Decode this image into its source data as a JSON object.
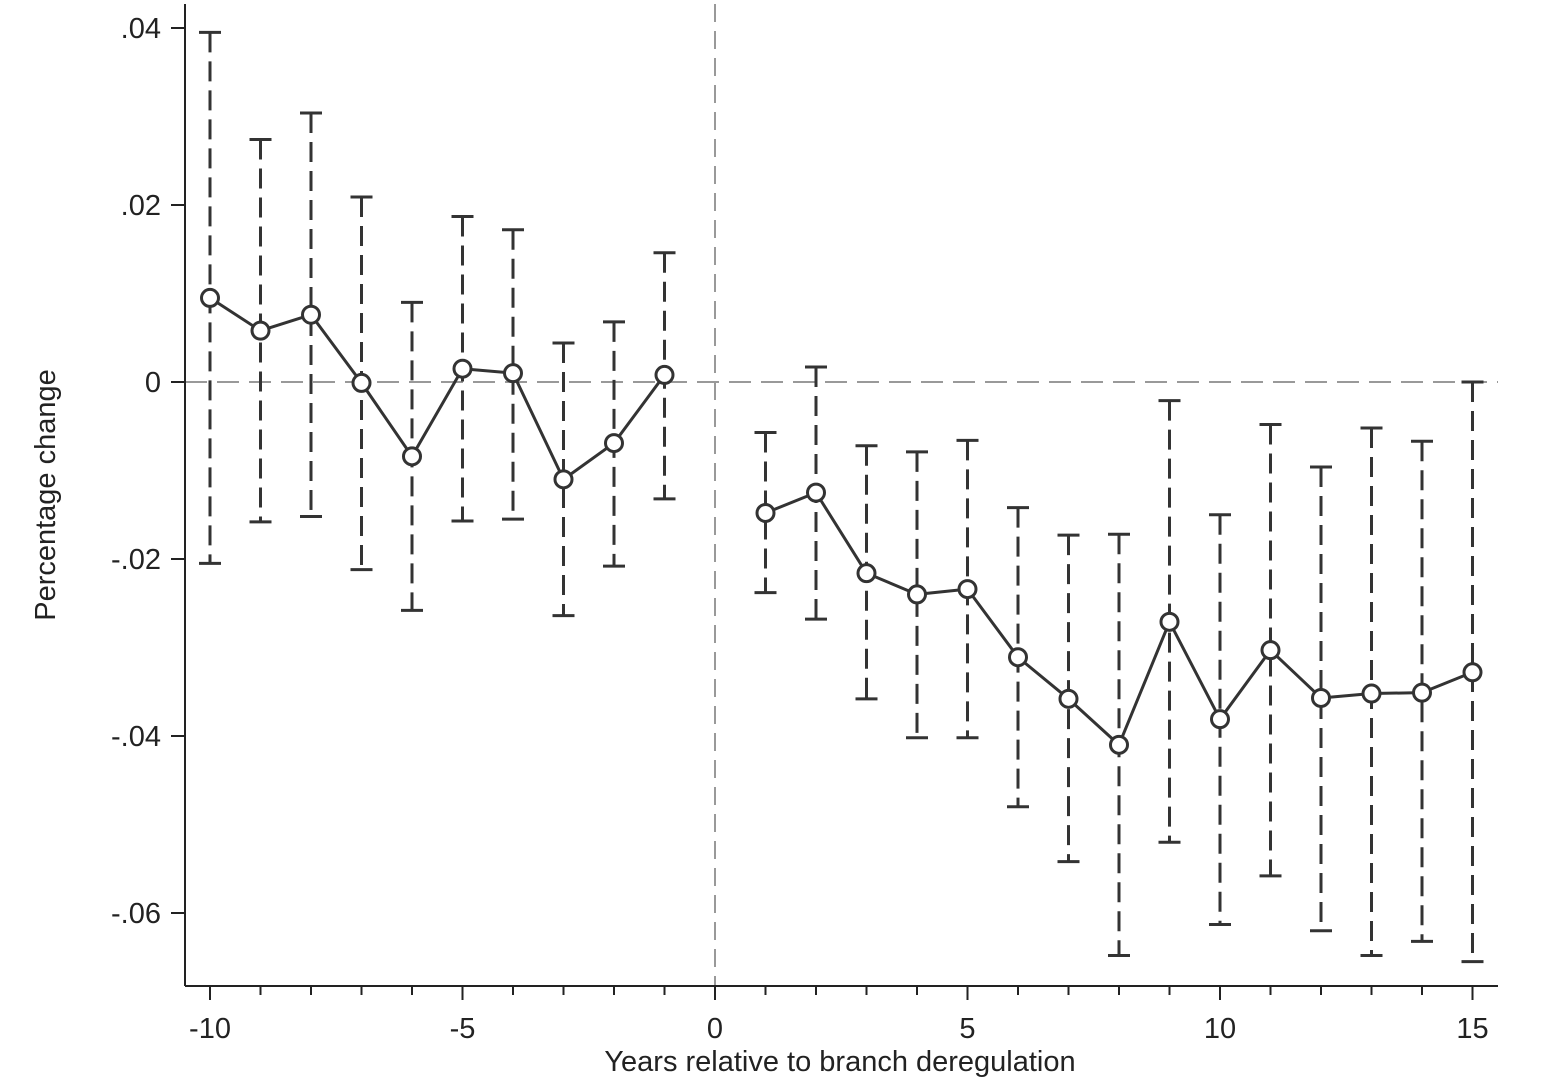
{
  "chart_data": {
    "type": "line",
    "xlabel": "Years relative to branch deregulation",
    "ylabel": "Percentage change",
    "xlim": [
      -10.5,
      15.5
    ],
    "ylim": [
      -0.068,
      0.043
    ],
    "x_ticks": [
      -10,
      -5,
      0,
      5,
      10,
      15
    ],
    "x_tick_labels": [
      "-10",
      "-5",
      "0",
      "5",
      "10",
      "15"
    ],
    "x_minor_ticks": [
      -9,
      -8,
      -7,
      -6,
      -4,
      -3,
      -2,
      -1,
      1,
      2,
      3,
      4,
      6,
      7,
      8,
      9,
      11,
      12,
      13,
      14
    ],
    "y_ticks": [
      0.04,
      0.02,
      0,
      -0.02,
      -0.04,
      -0.06
    ],
    "y_tick_labels": [
      ".04",
      ".02",
      "0",
      "-.02",
      "-.04",
      "-.06"
    ],
    "reference_lines": {
      "x": 0,
      "y": 0
    },
    "grid": false,
    "series": [
      {
        "x": [
          -10,
          -9,
          -8,
          -7,
          -6,
          -5,
          -4,
          -3,
          -2,
          -1
        ],
        "y": [
          0.0095,
          0.0058,
          0.0076,
          -0.0001,
          -0.0084,
          0.0015,
          0.001,
          -0.011,
          -0.0069,
          0.0008
        ],
        "lower": [
          -0.0205,
          -0.0158,
          -0.0152,
          -0.0212,
          -0.0258,
          -0.0157,
          -0.0155,
          -0.0264,
          -0.0208,
          -0.0132
        ],
        "upper": [
          0.0395,
          0.0274,
          0.0304,
          0.0209,
          0.009,
          0.0187,
          0.0172,
          0.0044,
          0.0068,
          0.0146
        ]
      },
      {
        "x": [
          1,
          2,
          3,
          4,
          5,
          6,
          7,
          8,
          9,
          10,
          11,
          12,
          13,
          14,
          15
        ],
        "y": [
          -0.0148,
          -0.0125,
          -0.0216,
          -0.024,
          -0.0234,
          -0.0311,
          -0.0358,
          -0.041,
          -0.0271,
          -0.0381,
          -0.0303,
          -0.0357,
          -0.0352,
          -0.0351,
          -0.0328
        ],
        "lower": [
          -0.0238,
          -0.0268,
          -0.0358,
          -0.0402,
          -0.0402,
          -0.048,
          -0.0542,
          -0.0648,
          -0.052,
          -0.0613,
          -0.0558,
          -0.062,
          -0.0648,
          -0.0632,
          -0.0655
        ],
        "upper": [
          -0.0057,
          0.0017,
          -0.0072,
          -0.0079,
          -0.0066,
          -0.0142,
          -0.0173,
          -0.0172,
          -0.0021,
          -0.015,
          -0.0048,
          -0.0096,
          -0.0052,
          -0.0067,
          0.0
        ]
      }
    ]
  },
  "colors": {
    "line": "#333333",
    "axis": "#222222",
    "reference": "#999999"
  }
}
